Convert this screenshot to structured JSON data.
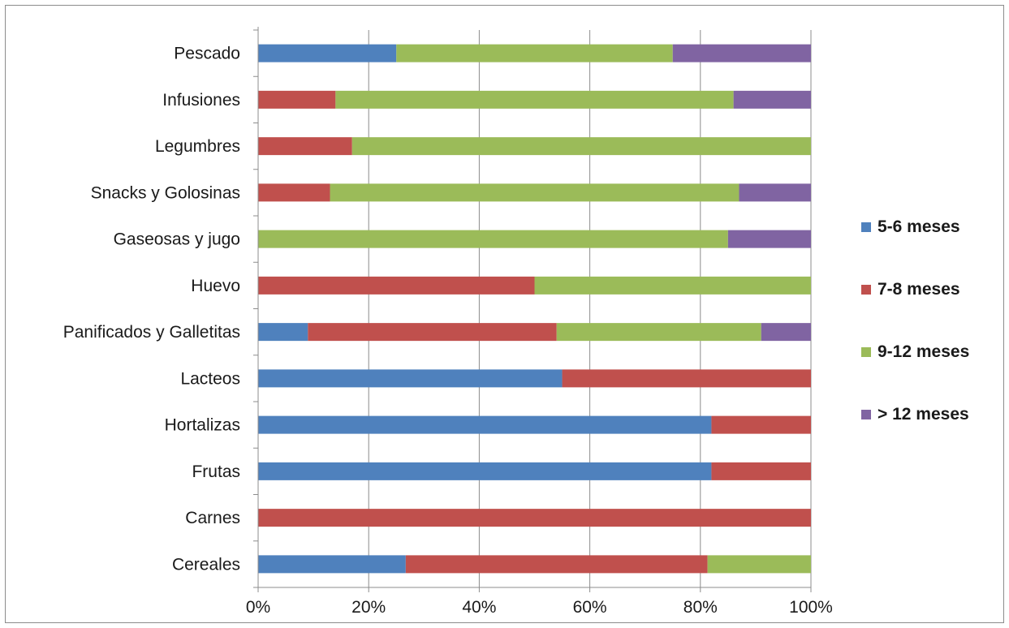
{
  "chart_data": {
    "type": "bar",
    "orientation": "horizontal",
    "stacked": "percent",
    "title": "",
    "xlabel": "",
    "ylabel": "",
    "xlim": [
      0,
      100
    ],
    "x_ticks": [
      "0%",
      "20%",
      "40%",
      "60%",
      "80%",
      "100%"
    ],
    "grid": "vertical",
    "legend_position": "right",
    "categories": [
      "Pescado",
      "Infusiones",
      "Legumbres",
      "Snacks y Golosinas",
      "Gaseosas y jugo",
      "Huevo",
      "Panificados y Galletitas",
      "Lacteos",
      "Hortalizas",
      "Frutas",
      "Carnes",
      "Cereales"
    ],
    "series": [
      {
        "name": "5-6 meses",
        "color": "#4f81bd",
        "values": [
          25,
          0,
          0,
          0,
          0,
          0,
          9,
          55,
          82,
          82,
          0,
          26.7
        ]
      },
      {
        "name": "7-8 meses",
        "color": "#c0504d",
        "values": [
          0,
          14,
          17,
          13,
          0,
          50,
          45,
          45,
          18,
          18,
          100,
          54.6
        ]
      },
      {
        "name": "9-12 meses",
        "color": "#9bbb59",
        "values": [
          50,
          72,
          83,
          74,
          85,
          50,
          37,
          0,
          0,
          0,
          0,
          18.7
        ]
      },
      {
        "name": "> 12 meses",
        "color": "#8064a2",
        "values": [
          25,
          14,
          0,
          13,
          15,
          0,
          9,
          0,
          0,
          0,
          0,
          0
        ]
      }
    ]
  }
}
